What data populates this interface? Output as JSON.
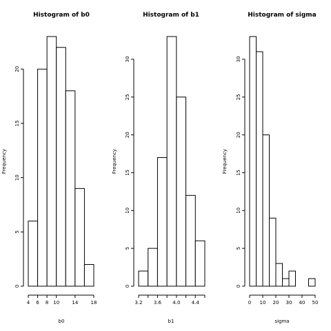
{
  "chart_data": [
    {
      "type": "bar",
      "title": "Histogram of b0",
      "xlabel": "b0",
      "ylabel": "Frequency",
      "bin_edges": [
        4,
        6,
        8,
        10,
        12,
        14,
        16,
        18
      ],
      "values": [
        6,
        20,
        23,
        22,
        18,
        9,
        2
      ],
      "xticks": [
        4,
        6,
        8,
        10,
        14,
        18
      ],
      "xtick_labels": [
        "4",
        "6",
        "8",
        "10",
        "14",
        "18"
      ],
      "xlim": [
        4,
        18
      ],
      "yticks": [
        0,
        5,
        10,
        15,
        20
      ],
      "ylim": [
        0,
        23
      ],
      "grid": false
    },
    {
      "type": "bar",
      "title": "Histogram of b1",
      "xlabel": "b1",
      "ylabel": "Frequency",
      "bin_edges": [
        3.2,
        3.4,
        3.6,
        3.8,
        4.0,
        4.2,
        4.4,
        4.6
      ],
      "values": [
        2,
        5,
        17,
        33,
        25,
        12,
        6
      ],
      "xticks": [
        3.2,
        3.4,
        3.6,
        3.8,
        4.0,
        4.2,
        4.4,
        4.6
      ],
      "xtick_labels": [
        "3.2",
        "",
        "3.6",
        "",
        "4.0",
        "",
        "4.4",
        ""
      ],
      "xlim": [
        3.2,
        4.6
      ],
      "yticks": [
        0,
        5,
        10,
        15,
        20,
        25,
        30
      ],
      "ylim": [
        0,
        33
      ],
      "grid": false
    },
    {
      "type": "bar",
      "title": "Histogram of sigma",
      "xlabel": "sigma",
      "ylabel": "Frequency",
      "bin_edges": [
        0,
        5,
        10,
        15,
        20,
        25,
        30,
        35,
        40,
        45,
        50
      ],
      "values": [
        33,
        31,
        20,
        9,
        3,
        1,
        2,
        0,
        0,
        1
      ],
      "xticks": [
        0,
        10,
        20,
        30,
        40,
        50
      ],
      "xtick_labels": [
        "0",
        "10",
        "20",
        "30",
        "40",
        "50"
      ],
      "xlim": [
        0,
        50
      ],
      "yticks": [
        0,
        5,
        10,
        15,
        20,
        25,
        30
      ],
      "ylim": [
        0,
        33
      ],
      "grid": false
    }
  ]
}
